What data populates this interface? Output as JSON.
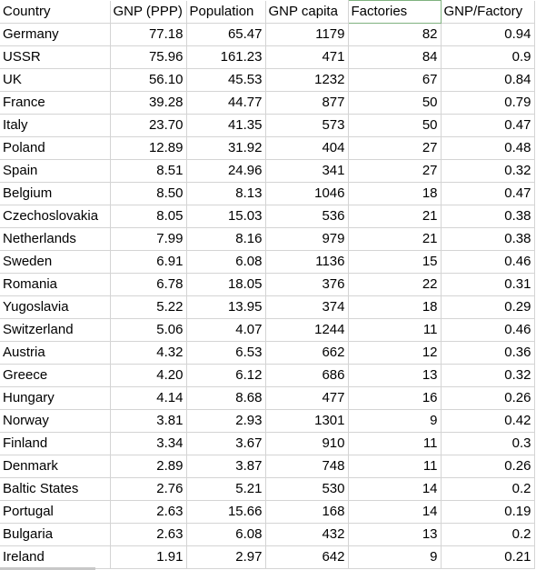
{
  "columns": [
    "Country",
    "GNP (PPP)",
    "Population",
    "GNP capita",
    "Factories",
    "GNP/Factory"
  ],
  "rows": [
    [
      "Germany",
      "77.18",
      "65.47",
      "1179",
      "82",
      "0.94"
    ],
    [
      "USSR",
      "75.96",
      "161.23",
      "471",
      "84",
      "0.9"
    ],
    [
      "UK",
      "56.10",
      "45.53",
      "1232",
      "67",
      "0.84"
    ],
    [
      "France",
      "39.28",
      "44.77",
      "877",
      "50",
      "0.79"
    ],
    [
      "Italy",
      "23.70",
      "41.35",
      "573",
      "50",
      "0.47"
    ],
    [
      "Poland",
      "12.89",
      "31.92",
      "404",
      "27",
      "0.48"
    ],
    [
      "Spain",
      "8.51",
      "24.96",
      "341",
      "27",
      "0.32"
    ],
    [
      "Belgium",
      "8.50",
      "8.13",
      "1046",
      "18",
      "0.47"
    ],
    [
      "Czechoslovakia",
      "8.05",
      "15.03",
      "536",
      "21",
      "0.38"
    ],
    [
      "Netherlands",
      "7.99",
      "8.16",
      "979",
      "21",
      "0.38"
    ],
    [
      "Sweden",
      "6.91",
      "6.08",
      "1136",
      "15",
      "0.46"
    ],
    [
      "Romania",
      "6.78",
      "18.05",
      "376",
      "22",
      "0.31"
    ],
    [
      "Yugoslavia",
      "5.22",
      "13.95",
      "374",
      "18",
      "0.29"
    ],
    [
      "Switzerland",
      "5.06",
      "4.07",
      "1244",
      "11",
      "0.46"
    ],
    [
      "Austria",
      "4.32",
      "6.53",
      "662",
      "12",
      "0.36"
    ],
    [
      "Greece",
      "4.20",
      "6.12",
      "686",
      "13",
      "0.32"
    ],
    [
      "Hungary",
      "4.14",
      "8.68",
      "477",
      "16",
      "0.26"
    ],
    [
      "Norway",
      "3.81",
      "2.93",
      "1301",
      "9",
      "0.42"
    ],
    [
      "Finland",
      "3.34",
      "3.67",
      "910",
      "11",
      "0.3"
    ],
    [
      "Denmark",
      "2.89",
      "3.87",
      "748",
      "11",
      "0.26"
    ],
    [
      "Baltic States",
      "2.76",
      "5.21",
      "530",
      "14",
      "0.2"
    ],
    [
      "Portugal",
      "2.63",
      "15.66",
      "168",
      "14",
      "0.19"
    ],
    [
      "Bulgaria",
      "2.63",
      "6.08",
      "432",
      "13",
      "0.2"
    ],
    [
      "Ireland",
      "1.91",
      "2.97",
      "642",
      "9",
      "0.21"
    ]
  ]
}
